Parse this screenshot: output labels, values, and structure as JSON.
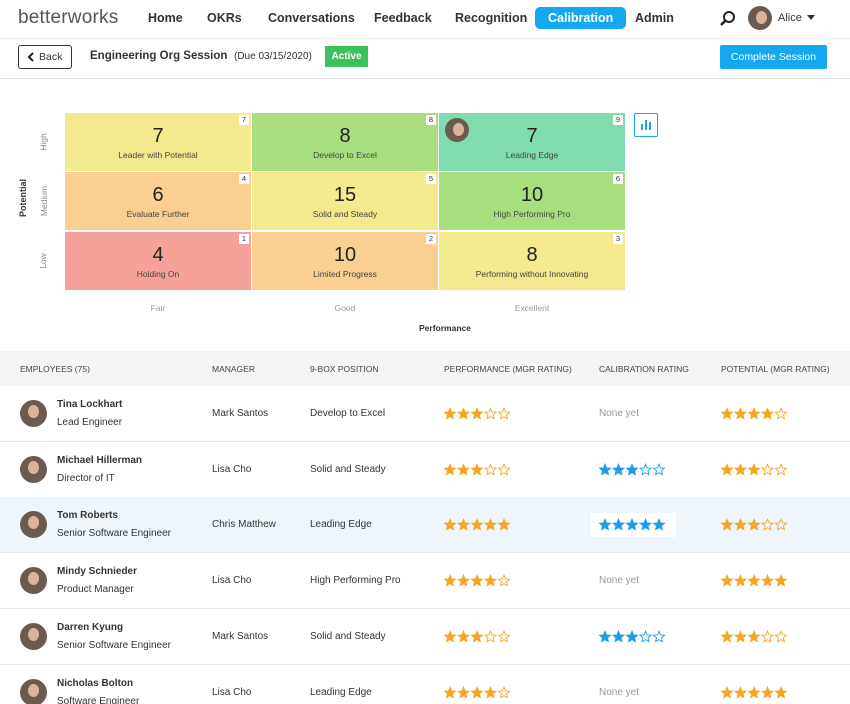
{
  "nav": {
    "logo": "betterworks",
    "items": [
      "Home",
      "OKRs",
      "Conversations",
      "Feedback",
      "Recognition",
      "Calibration",
      "Admin"
    ],
    "user": "Alice"
  },
  "session": {
    "back": "Back",
    "title": "Engineering Org Session",
    "due": "(Due 03/15/2020)",
    "status": "Active",
    "action": "Complete Session"
  },
  "grid": {
    "y_axis": "Potential",
    "x_axis": "Performance",
    "rows": [
      "High",
      "Medium",
      "Low"
    ],
    "columns": [
      "Fair",
      "Good",
      "Excellent"
    ],
    "cells": [
      [
        {
          "count": 7,
          "label": "Leader with Potential",
          "box": 7
        },
        {
          "count": 8,
          "label": "Develop to Excel",
          "box": 8
        },
        {
          "count": 7,
          "label": "Leading Edge",
          "box": 9
        }
      ],
      [
        {
          "count": 6,
          "label": "Evaluate Further",
          "box": 4
        },
        {
          "count": 15,
          "label": "Solid and Steady",
          "box": 5
        },
        {
          "count": 10,
          "label": "High Performing Pro",
          "box": 6
        }
      ],
      [
        {
          "count": 4,
          "label": "Holding On",
          "box": 1
        },
        {
          "count": 10,
          "label": "Limited Progress",
          "box": 2
        },
        {
          "count": 8,
          "label": "Performing without Innovating",
          "box": 3
        }
      ]
    ]
  },
  "table": {
    "headers": [
      "EMPLOYEES (75)",
      "MANAGER",
      "9-BOX POSITION",
      "PERFORMANCE (MGR RATING)",
      "CALIBRATION RATING",
      "POTENTIAL (MGR RATING)"
    ],
    "rows": [
      {
        "name": "Tina Lockhart",
        "title": "Lead Engineer",
        "manager": "Mark Santos",
        "position": "Develop to Excel",
        "performance": 3,
        "calibration": "None yet",
        "potential": 4
      },
      {
        "name": "Michael Hillerman",
        "title": "Director of IT",
        "manager": "Lisa Cho",
        "position": "Solid and Steady",
        "performance": 3,
        "calibration": 3,
        "potential": 3
      },
      {
        "name": "Tom Roberts",
        "title": "Senior Software Engineer",
        "manager": "Chris Matthew",
        "position": "Leading Edge",
        "performance": 5,
        "calibration": 5,
        "potential": 3
      },
      {
        "name": "Mindy Schnieder",
        "title": "Product Manager",
        "manager": "Lisa Cho",
        "position": "High Performing Pro",
        "performance": 4,
        "calibration": "None yet",
        "potential": 5
      },
      {
        "name": "Darren Kyung",
        "title": "Senior Software Engineer",
        "manager": "Mark Santos",
        "position": "Solid and Steady",
        "performance": 3,
        "calibration": 3,
        "potential": 3
      },
      {
        "name": "Nicholas Bolton",
        "title": "Software Engineer",
        "manager": "Lisa Cho",
        "position": "Leading Edge",
        "performance": 4,
        "calibration": "None yet",
        "potential": 5
      }
    ]
  }
}
